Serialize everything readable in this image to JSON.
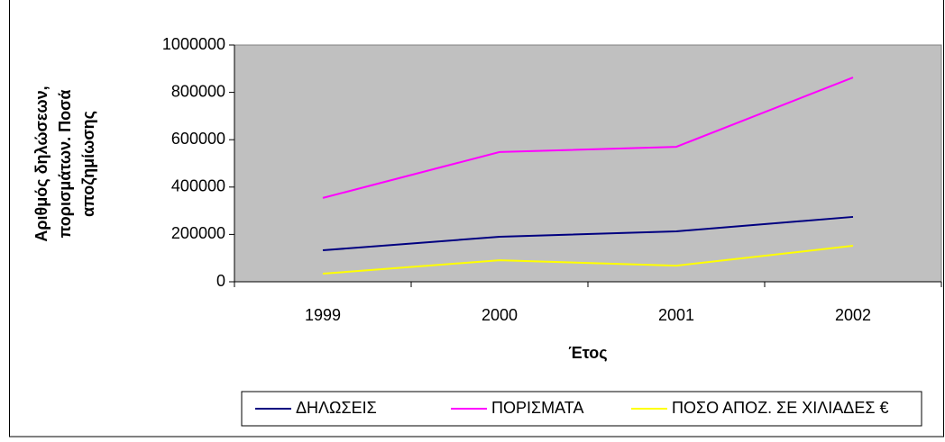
{
  "chart_data": {
    "type": "line",
    "ylabel": [
      "Αριθμός δηλώσεων,",
      "πορισμάτων. Ποσά",
      "αποζημίωσης"
    ],
    "xlabel": "Έτος",
    "categories": [
      "1999",
      "2000",
      "2001",
      "2002"
    ],
    "series": [
      {
        "name": "ΔΗΛΩΣΕΙΣ",
        "color": "#000080",
        "values": [
          133000,
          190000,
          213000,
          274000
        ]
      },
      {
        "name": "ΠΟΡΙΣΜΑΤΑ",
        "color": "#ff00ff",
        "values": [
          354000,
          548000,
          570000,
          863000
        ]
      },
      {
        "name": "ΠΟΣΟ ΑΠΟΖ. ΣΕ ΧΙΛΙΑΔΕΣ €",
        "color": "#ffff00",
        "values": [
          34000,
          91000,
          68000,
          152000
        ]
      }
    ],
    "ylim": [
      0,
      1000000
    ],
    "yticks": [
      0,
      200000,
      400000,
      600000,
      800000,
      1000000
    ],
    "grid": false,
    "legend": "bottom"
  }
}
